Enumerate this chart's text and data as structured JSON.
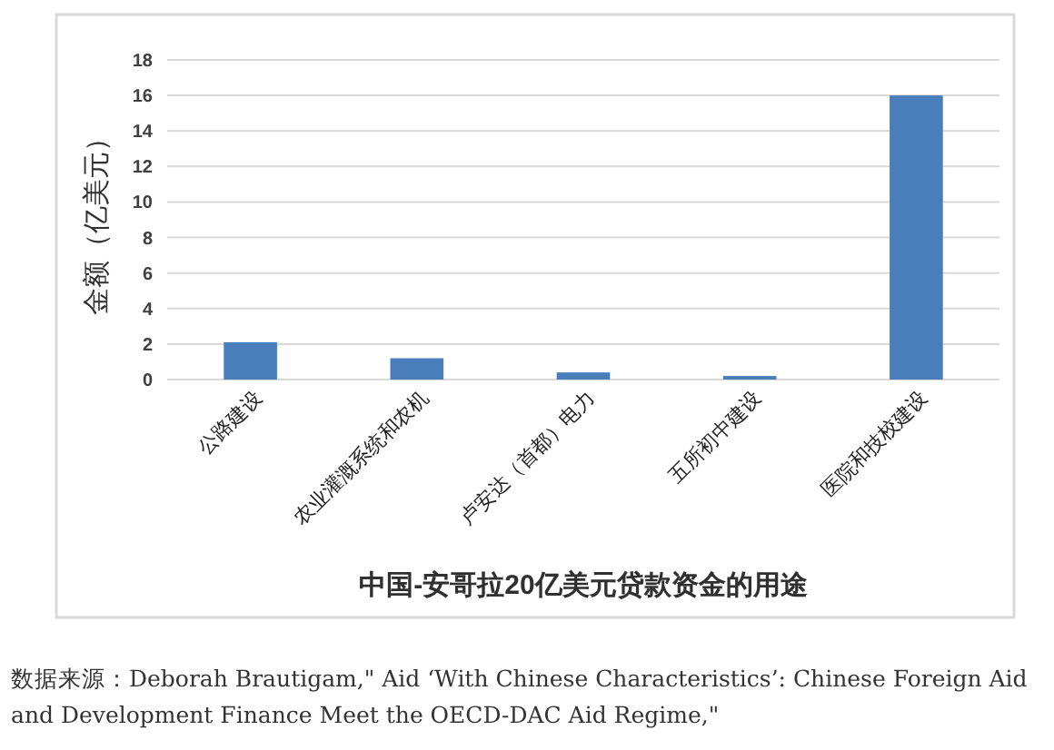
{
  "chart_data": {
    "type": "bar",
    "xlabel": "中国-安哥拉20亿美元贷款资金的用途",
    "ylabel": "金额（亿美元）",
    "categories": [
      "公路建设",
      "农业灌溉系统和农机",
      "卢安达（首都）电力",
      "五所初中建设",
      "医院和技校建设"
    ],
    "values": [
      2.1,
      1.2,
      0.4,
      0.2,
      16
    ],
    "color": "#4a7ebb",
    "ylim": [
      0,
      18
    ],
    "yticks": [
      0,
      2,
      4,
      6,
      8,
      10,
      12,
      14,
      16,
      18
    ],
    "grid": "y",
    "annotations": [
      "数据来源：Deborah Brautigam,\" Aid ‘With Chinese Characteristics’: Chinese Foreign Aid and Development Finance Meet the OECD-DAC Aid Regime,\""
    ]
  }
}
